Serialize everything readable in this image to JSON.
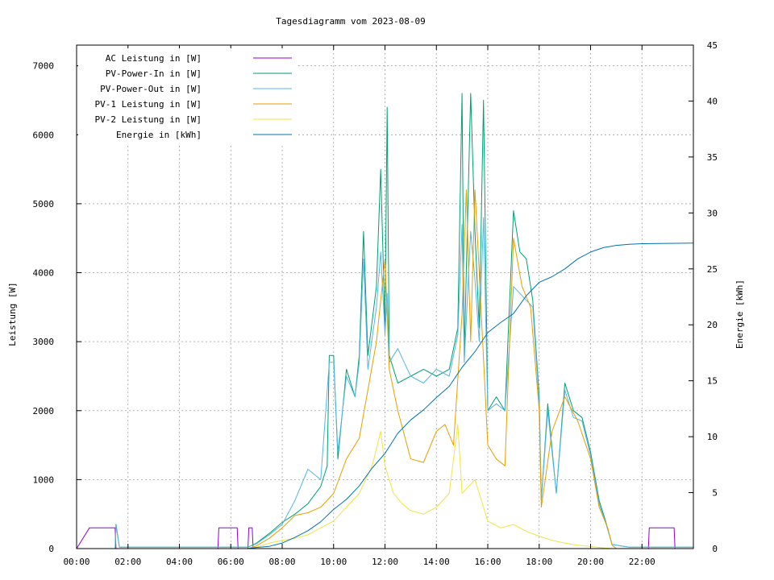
{
  "chart_data": {
    "type": "line",
    "title": "Tagesdiagramm vom 2023-08-09",
    "ylabel": "Leistung [W]",
    "y2label": "Energie [kWh]",
    "xlim": [
      "00:00",
      "24:00"
    ],
    "ylim": [
      0,
      7300
    ],
    "y2lim": [
      0,
      45
    ],
    "grid": true,
    "legend_position": "top-left",
    "x_ticks": [
      "00:00",
      "02:00",
      "04:00",
      "06:00",
      "08:00",
      "10:00",
      "12:00",
      "14:00",
      "16:00",
      "18:00",
      "20:00",
      "22:00"
    ],
    "y_ticks": [
      0,
      1000,
      2000,
      3000,
      4000,
      5000,
      6000,
      7000
    ],
    "y2_ticks": [
      0,
      5,
      10,
      15,
      20,
      25,
      30,
      35,
      40,
      45
    ],
    "series": [
      {
        "name": "AC Leistung in [W]",
        "color": "#9400d3",
        "axis": "y",
        "points": [
          [
            "00:00",
            0
          ],
          [
            "00:30",
            300
          ],
          [
            "01:00",
            300
          ],
          [
            "01:30",
            300
          ],
          [
            "01:32",
            0
          ],
          [
            "05:30",
            0
          ],
          [
            "05:32",
            300
          ],
          [
            "06:15",
            300
          ],
          [
            "06:17",
            0
          ],
          [
            "06:40",
            0
          ],
          [
            "06:42",
            300
          ],
          [
            "06:50",
            300
          ],
          [
            "06:52",
            0
          ],
          [
            "22:15",
            0
          ],
          [
            "22:17",
            300
          ],
          [
            "23:15",
            300
          ],
          [
            "23:17",
            0
          ],
          [
            "23:59",
            0
          ]
        ]
      },
      {
        "name": "PV-Power-In in [W]",
        "color": "#009e73",
        "axis": "y",
        "points": [
          [
            "01:30",
            0
          ],
          [
            "01:32",
            350
          ],
          [
            "01:40",
            20
          ],
          [
            "06:40",
            20
          ],
          [
            "07:00",
            80
          ],
          [
            "07:30",
            220
          ],
          [
            "08:00",
            380
          ],
          [
            "08:30",
            500
          ],
          [
            "09:00",
            650
          ],
          [
            "09:30",
            900
          ],
          [
            "09:45",
            1200
          ],
          [
            "09:50",
            2800
          ],
          [
            "10:00",
            2800
          ],
          [
            "10:10",
            1300
          ],
          [
            "10:30",
            2600
          ],
          [
            "10:50",
            2200
          ],
          [
            "11:00",
            2800
          ],
          [
            "11:10",
            4600
          ],
          [
            "11:20",
            2800
          ],
          [
            "11:40",
            3800
          ],
          [
            "11:50",
            5500
          ],
          [
            "12:00",
            3200
          ],
          [
            "12:05",
            6400
          ],
          [
            "12:10",
            2800
          ],
          [
            "12:30",
            2400
          ],
          [
            "13:00",
            2500
          ],
          [
            "13:30",
            2600
          ],
          [
            "14:00",
            2500
          ],
          [
            "14:30",
            2600
          ],
          [
            "14:50",
            3200
          ],
          [
            "15:00",
            6600
          ],
          [
            "15:05",
            2800
          ],
          [
            "15:20",
            6600
          ],
          [
            "15:30",
            4600
          ],
          [
            "15:40",
            3200
          ],
          [
            "15:50",
            6500
          ],
          [
            "16:00",
            2000
          ],
          [
            "16:20",
            2200
          ],
          [
            "16:40",
            2000
          ],
          [
            "17:00",
            4900
          ],
          [
            "17:15",
            4300
          ],
          [
            "17:30",
            4200
          ],
          [
            "17:45",
            3600
          ],
          [
            "18:00",
            2200
          ],
          [
            "18:05",
            700
          ],
          [
            "18:20",
            2100
          ],
          [
            "18:40",
            800
          ],
          [
            "19:00",
            2400
          ],
          [
            "19:20",
            2000
          ],
          [
            "19:40",
            1900
          ],
          [
            "20:00",
            1400
          ],
          [
            "20:20",
            700
          ],
          [
            "20:35",
            400
          ],
          [
            "20:50",
            60
          ],
          [
            "21:30",
            20
          ],
          [
            "23:59",
            20
          ]
        ]
      },
      {
        "name": "PV-Power-Out in [W]",
        "color": "#56b4e9",
        "axis": "y",
        "points": [
          [
            "01:30",
            0
          ],
          [
            "01:32",
            330
          ],
          [
            "01:40",
            20
          ],
          [
            "06:40",
            20
          ],
          [
            "07:00",
            70
          ],
          [
            "07:30",
            200
          ],
          [
            "08:00",
            350
          ],
          [
            "08:30",
            700
          ],
          [
            "09:00",
            1150
          ],
          [
            "09:30",
            1000
          ],
          [
            "09:50",
            2700
          ],
          [
            "10:00",
            2700
          ],
          [
            "10:10",
            1400
          ],
          [
            "10:30",
            2500
          ],
          [
            "10:50",
            2200
          ],
          [
            "11:00",
            2700
          ],
          [
            "11:10",
            4200
          ],
          [
            "11:20",
            2600
          ],
          [
            "11:40",
            3500
          ],
          [
            "11:50",
            4300
          ],
          [
            "12:00",
            3100
          ],
          [
            "12:05",
            3700
          ],
          [
            "12:10",
            2700
          ],
          [
            "12:30",
            2900
          ],
          [
            "13:00",
            2500
          ],
          [
            "13:30",
            2400
          ],
          [
            "14:00",
            2600
          ],
          [
            "14:30",
            2500
          ],
          [
            "14:50",
            3100
          ],
          [
            "15:00",
            4700
          ],
          [
            "15:05",
            2700
          ],
          [
            "15:20",
            4600
          ],
          [
            "15:30",
            3900
          ],
          [
            "15:40",
            3000
          ],
          [
            "15:50",
            4800
          ],
          [
            "16:00",
            2000
          ],
          [
            "16:20",
            2100
          ],
          [
            "16:40",
            2000
          ],
          [
            "17:00",
            3800
          ],
          [
            "17:15",
            3700
          ],
          [
            "17:30",
            3600
          ],
          [
            "17:45",
            3500
          ],
          [
            "18:00",
            2100
          ],
          [
            "18:05",
            700
          ],
          [
            "18:20",
            2000
          ],
          [
            "18:40",
            800
          ],
          [
            "19:00",
            2300
          ],
          [
            "19:20",
            1900
          ],
          [
            "19:40",
            1850
          ],
          [
            "20:00",
            1350
          ],
          [
            "20:20",
            650
          ],
          [
            "20:35",
            380
          ],
          [
            "20:50",
            60
          ],
          [
            "21:30",
            20
          ],
          [
            "23:59",
            20
          ]
        ]
      },
      {
        "name": "PV-1 Leistung in [W]",
        "color": "#e69f00",
        "axis": "y",
        "points": [
          [
            "06:40",
            0
          ],
          [
            "07:00",
            40
          ],
          [
            "07:30",
            150
          ],
          [
            "08:00",
            300
          ],
          [
            "08:30",
            480
          ],
          [
            "09:00",
            520
          ],
          [
            "09:30",
            600
          ],
          [
            "10:00",
            800
          ],
          [
            "10:30",
            1300
          ],
          [
            "11:00",
            1600
          ],
          [
            "11:20",
            2300
          ],
          [
            "11:40",
            3000
          ],
          [
            "12:00",
            4200
          ],
          [
            "12:10",
            2600
          ],
          [
            "12:30",
            2000
          ],
          [
            "13:00",
            1300
          ],
          [
            "13:30",
            1250
          ],
          [
            "14:00",
            1700
          ],
          [
            "14:20",
            1800
          ],
          [
            "14:40",
            1500
          ],
          [
            "15:00",
            3400
          ],
          [
            "15:10",
            5200
          ],
          [
            "15:20",
            3000
          ],
          [
            "15:30",
            5200
          ],
          [
            "15:40",
            4000
          ],
          [
            "16:00",
            1500
          ],
          [
            "16:20",
            1300
          ],
          [
            "16:40",
            1200
          ],
          [
            "17:00",
            4500
          ],
          [
            "17:20",
            3800
          ],
          [
            "17:40",
            3500
          ],
          [
            "18:00",
            2000
          ],
          [
            "18:05",
            600
          ],
          [
            "18:30",
            1700
          ],
          [
            "19:00",
            2200
          ],
          [
            "19:30",
            1850
          ],
          [
            "20:00",
            1300
          ],
          [
            "20:20",
            600
          ],
          [
            "20:40",
            300
          ],
          [
            "20:50",
            50
          ],
          [
            "21:00",
            0
          ],
          [
            "23:59",
            0
          ]
        ]
      },
      {
        "name": "PV-2 Leistung in [W]",
        "color": "#f0e442",
        "axis": "y",
        "points": [
          [
            "06:40",
            0
          ],
          [
            "07:00",
            20
          ],
          [
            "07:30",
            80
          ],
          [
            "08:00",
            120
          ],
          [
            "08:30",
            150
          ],
          [
            "09:00",
            200
          ],
          [
            "09:30",
            300
          ],
          [
            "10:00",
            400
          ],
          [
            "10:30",
            600
          ],
          [
            "11:00",
            800
          ],
          [
            "11:30",
            1200
          ],
          [
            "11:50",
            1700
          ],
          [
            "12:00",
            1200
          ],
          [
            "12:20",
            800
          ],
          [
            "12:40",
            650
          ],
          [
            "13:00",
            550
          ],
          [
            "13:30",
            500
          ],
          [
            "14:00",
            600
          ],
          [
            "14:30",
            800
          ],
          [
            "14:50",
            1800
          ],
          [
            "15:00",
            800
          ],
          [
            "15:30",
            1000
          ],
          [
            "16:00",
            400
          ],
          [
            "16:30",
            300
          ],
          [
            "17:00",
            350
          ],
          [
            "17:30",
            250
          ],
          [
            "18:00",
            180
          ],
          [
            "18:30",
            120
          ],
          [
            "19:00",
            80
          ],
          [
            "19:30",
            50
          ],
          [
            "20:00",
            30
          ],
          [
            "20:30",
            10
          ],
          [
            "20:50",
            0
          ],
          [
            "23:59",
            0
          ]
        ]
      },
      {
        "name": "Energie in [kWh]",
        "color": "#0072b2",
        "axis": "y2",
        "points": [
          [
            "06:40",
            0
          ],
          [
            "07:00",
            0.1
          ],
          [
            "07:30",
            0.2
          ],
          [
            "08:00",
            0.5
          ],
          [
            "08:30",
            1.0
          ],
          [
            "09:00",
            1.6
          ],
          [
            "09:30",
            2.4
          ],
          [
            "10:00",
            3.5
          ],
          [
            "10:30",
            4.4
          ],
          [
            "11:00",
            5.6
          ],
          [
            "11:30",
            7.2
          ],
          [
            "12:00",
            8.5
          ],
          [
            "12:30",
            10.3
          ],
          [
            "13:00",
            11.5
          ],
          [
            "13:30",
            12.4
          ],
          [
            "14:00",
            13.5
          ],
          [
            "14:30",
            14.5
          ],
          [
            "15:00",
            16.2
          ],
          [
            "15:30",
            17.6
          ],
          [
            "16:00",
            19.3
          ],
          [
            "16:30",
            20.2
          ],
          [
            "17:00",
            21.0
          ],
          [
            "17:30",
            22.6
          ],
          [
            "18:00",
            23.8
          ],
          [
            "18:30",
            24.3
          ],
          [
            "19:00",
            25.0
          ],
          [
            "19:30",
            25.9
          ],
          [
            "20:00",
            26.5
          ],
          [
            "20:30",
            26.9
          ],
          [
            "21:00",
            27.1
          ],
          [
            "21:30",
            27.2
          ],
          [
            "22:00",
            27.25
          ],
          [
            "23:59",
            27.3
          ]
        ]
      }
    ]
  }
}
